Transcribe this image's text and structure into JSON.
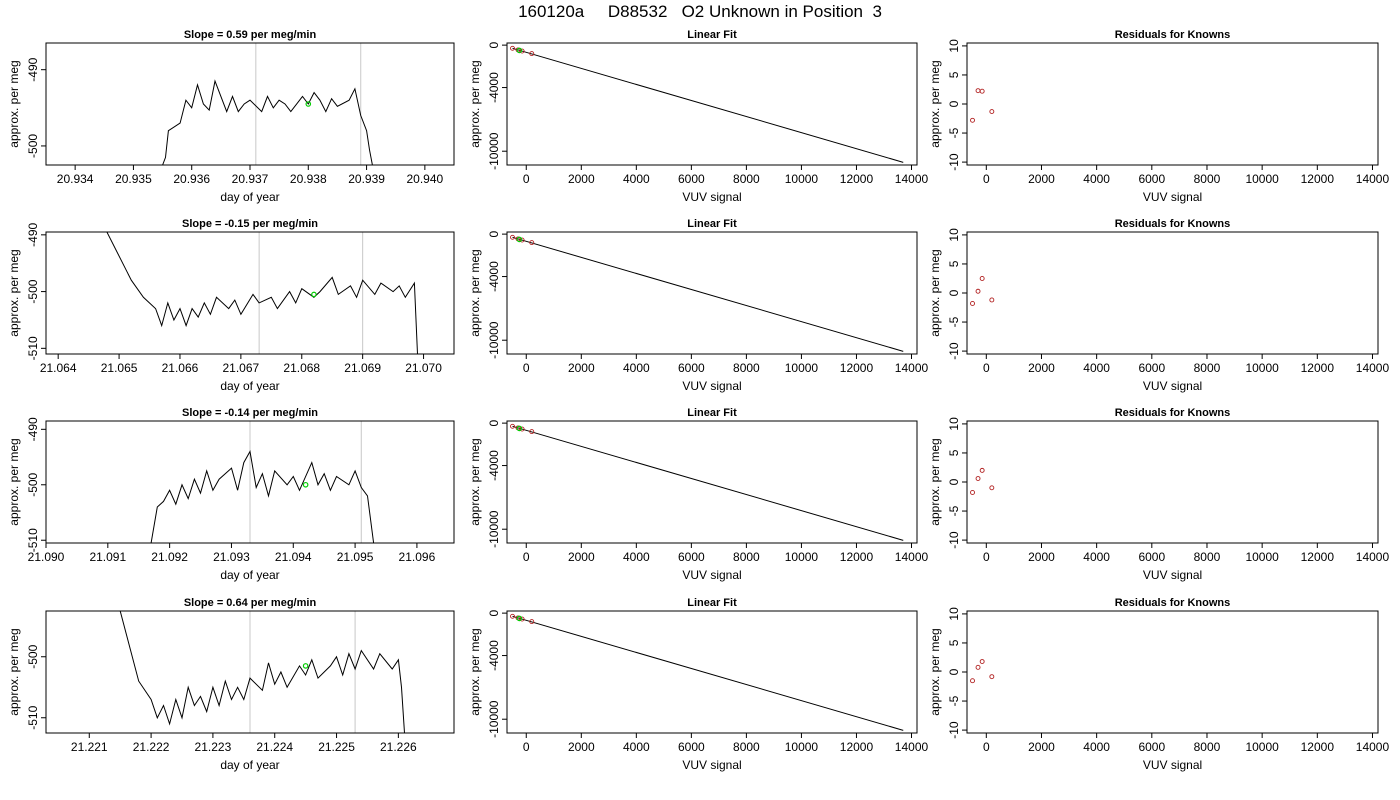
{
  "page": {
    "title": "160120a     D88532   O2 Unknown in Position  3"
  },
  "chart_data": [
    {
      "type": "line",
      "panel": "timeseries",
      "title": "Slope =  0.59  per meg/min",
      "xlabel": "day of year",
      "ylabel": "approx. per meg",
      "xlim": [
        20.9335,
        20.9405
      ],
      "ylim": [
        -502.5,
        -486.5
      ],
      "xticks": [
        "20.934",
        "20.935",
        "20.936",
        "20.937",
        "20.938",
        "20.939",
        "20.940"
      ],
      "yticks": [
        "-500",
        "-490"
      ],
      "vlines": [
        20.9371,
        20.9389
      ],
      "marker": {
        "x": 20.938,
        "y": -494.5,
        "color": "#00cc00"
      },
      "series_color": "#000000",
      "vline_color": "#c8c8c8",
      "series": [
        {
          "name": "",
          "x": [
            20.9355,
            20.93555,
            20.9356,
            20.9358,
            20.9359,
            20.936,
            20.9361,
            20.9362,
            20.9363,
            20.9364,
            20.9366,
            20.9367,
            20.9368,
            20.9369,
            20.937,
            20.9372,
            20.9373,
            20.9374,
            20.9375,
            20.9376,
            20.9377,
            20.9379,
            20.938,
            20.9381,
            20.9382,
            20.9383,
            20.9384,
            20.9385,
            20.9387,
            20.9388,
            20.9389,
            20.939,
            20.93905,
            20.9391
          ],
          "y": [
            -502.5,
            -501.5,
            -498,
            -497,
            -494,
            -495,
            -492,
            -494.5,
            -495.3,
            -491.5,
            -495.5,
            -493.5,
            -495.5,
            -494.5,
            -494,
            -495.5,
            -493.5,
            -495,
            -494,
            -494.5,
            -495.5,
            -493.5,
            -494.5,
            -493,
            -494,
            -495.5,
            -493.8,
            -494.8,
            -494,
            -492.5,
            -496,
            -498,
            -500.5,
            -502.5
          ]
        }
      ]
    },
    {
      "type": "line",
      "panel": "linear-fit",
      "title": "Linear Fit",
      "xlabel": "VUV signal",
      "ylabel": "approx. per meg",
      "xlim": [
        -700,
        14200
      ],
      "ylim": [
        -11300,
        200
      ],
      "xticks": [
        "0",
        "2000",
        "4000",
        "6000",
        "8000",
        "10000",
        "12000",
        "14000"
      ],
      "yticks": [
        "0",
        "-4000",
        "-10000"
      ],
      "fit_line": {
        "x": [
          -500,
          13700
        ],
        "y": [
          -300,
          -11050
        ]
      },
      "knowns": {
        "x": [
          -500,
          -300,
          -150,
          200
        ],
        "y": [
          -300,
          -450,
          -560,
          -800
        ]
      },
      "unknown": {
        "x": [
          -250
        ],
        "y": [
          -500
        ]
      }
    },
    {
      "type": "scatter",
      "panel": "residuals",
      "title": "Residuals for Knowns",
      "xlabel": "VUV signal",
      "ylabel": "approx. per meg",
      "xlim": [
        -700,
        14200
      ],
      "ylim": [
        -10.5,
        10.5
      ],
      "xticks": [
        "0",
        "2000",
        "4000",
        "6000",
        "8000",
        "10000",
        "12000",
        "14000"
      ],
      "yticks": [
        "-10",
        "-5",
        "0",
        "5",
        "10"
      ],
      "series": [
        {
          "name": "",
          "x": [
            -500,
            -300,
            -150,
            200
          ],
          "y": [
            -2.8,
            2.3,
            2.2,
            -1.3
          ]
        }
      ]
    },
    {
      "type": "line",
      "panel": "timeseries",
      "title": "Slope =  -0.15  per meg/min",
      "xlabel": "day of year",
      "ylabel": "approx. per meg",
      "xlim": [
        21.0638,
        21.0705
      ],
      "ylim": [
        -511,
        -489.5
      ],
      "xticks": [
        "21.064",
        "21.065",
        "21.066",
        "21.067",
        "21.068",
        "21.069",
        "21.070"
      ],
      "yticks": [
        "-510",
        "-500",
        "-490"
      ],
      "vlines": [
        21.0673,
        21.069
      ],
      "marker": {
        "x": 21.0682,
        "y": -500.5,
        "color": "#00cc00"
      },
      "series_color": "#000000",
      "vline_color": "#c8c8c8",
      "series": [
        {
          "name": "",
          "x": [
            21.0648,
            21.0652,
            21.0654,
            21.0656,
            21.0657,
            21.0658,
            21.0659,
            21.066,
            21.0661,
            21.0662,
            21.0663,
            21.0664,
            21.0665,
            21.0666,
            21.0668,
            21.0669,
            21.067,
            21.0672,
            21.0673,
            21.0675,
            21.0676,
            21.0678,
            21.0679,
            21.068,
            21.0682,
            21.0683,
            21.0685,
            21.0686,
            21.0688,
            21.0689,
            21.069,
            21.0692,
            21.0693,
            21.0695,
            21.0696,
            21.0697,
            21.06985,
            21.0699
          ],
          "y": [
            -489.5,
            -498,
            -501,
            -503,
            -506,
            -502,
            -505,
            -503,
            -506,
            -503,
            -504.5,
            -502,
            -504,
            -501,
            -503,
            -501.5,
            -504,
            -500.5,
            -502,
            -501,
            -503,
            -500,
            -502,
            -499.5,
            -501,
            -500,
            -497.5,
            -500.5,
            -499,
            -501,
            -498,
            -500.5,
            -498.5,
            -500,
            -499,
            -501,
            -498.5,
            -511
          ]
        }
      ]
    },
    {
      "type": "line",
      "panel": "linear-fit",
      "title": "Linear Fit",
      "xlabel": "VUV signal",
      "ylabel": "approx. per meg",
      "xlim": [
        -700,
        14200
      ],
      "ylim": [
        -11300,
        200
      ],
      "xticks": [
        "0",
        "2000",
        "4000",
        "6000",
        "8000",
        "10000",
        "12000",
        "14000"
      ],
      "yticks": [
        "0",
        "-4000",
        "-10000"
      ],
      "fit_line": {
        "x": [
          -500,
          13700
        ],
        "y": [
          -300,
          -11050
        ]
      },
      "knowns": {
        "x": [
          -500,
          -300,
          -150,
          200
        ],
        "y": [
          -300,
          -450,
          -560,
          -800
        ]
      },
      "unknown": {
        "x": [
          -250
        ],
        "y": [
          -500
        ]
      }
    },
    {
      "type": "scatter",
      "panel": "residuals",
      "title": "Residuals for Knowns",
      "xlabel": "VUV signal",
      "ylabel": "approx. per meg",
      "xlim": [
        -700,
        14200
      ],
      "ylim": [
        -10.5,
        10.5
      ],
      "xticks": [
        "0",
        "2000",
        "4000",
        "6000",
        "8000",
        "10000",
        "12000",
        "14000"
      ],
      "yticks": [
        "-10",
        "-5",
        "0",
        "5",
        "10"
      ],
      "series": [
        {
          "name": "",
          "x": [
            -500,
            -300,
            -150,
            200
          ],
          "y": [
            -1.8,
            0.3,
            2.5,
            -1.2
          ]
        }
      ]
    },
    {
      "type": "line",
      "panel": "timeseries",
      "title": "Slope =  -0.14  per meg/min",
      "xlabel": "day of year",
      "ylabel": "approx. per meg",
      "xlim": [
        21.09,
        21.0966
      ],
      "ylim": [
        -510.5,
        -488.5
      ],
      "xticks": [
        "21.090",
        "21.091",
        "21.092",
        "21.093",
        "21.094",
        "21.095",
        "21.096"
      ],
      "yticks": [
        "-510",
        "-500",
        "-490"
      ],
      "vlines": [
        21.0933,
        21.0951
      ],
      "marker": {
        "x": 21.0942,
        "y": -500,
        "color": "#00cc00"
      },
      "series_color": "#000000",
      "vline_color": "#c8c8c8",
      "series": [
        {
          "name": "",
          "x": [
            21.0917,
            21.0918,
            21.0919,
            21.092,
            21.0921,
            21.0922,
            21.0923,
            21.0924,
            21.0925,
            21.0926,
            21.0927,
            21.0928,
            21.093,
            21.0931,
            21.0932,
            21.0933,
            21.0934,
            21.0935,
            21.0936,
            21.0937,
            21.0939,
            21.094,
            21.0941,
            21.0943,
            21.0944,
            21.0945,
            21.0946,
            21.0947,
            21.0949,
            21.095,
            21.0951,
            21.0952,
            21.0953
          ],
          "y": [
            -510.5,
            -504,
            -503,
            -501,
            -503.5,
            -500,
            -502.5,
            -499,
            -501.5,
            -497.5,
            -501,
            -499,
            -497,
            -501,
            -496,
            -494,
            -500.5,
            -498,
            -502,
            -497.5,
            -500,
            -498.5,
            -501,
            -496,
            -500,
            -498,
            -501,
            -498.5,
            -500,
            -497.5,
            -500.5,
            -502,
            -510.5
          ]
        }
      ]
    },
    {
      "type": "line",
      "panel": "linear-fit",
      "title": "Linear Fit",
      "xlabel": "VUV signal",
      "ylabel": "approx. per meg",
      "xlim": [
        -700,
        14200
      ],
      "ylim": [
        -11300,
        200
      ],
      "xticks": [
        "0",
        "2000",
        "4000",
        "6000",
        "8000",
        "10000",
        "12000",
        "14000"
      ],
      "yticks": [
        "0",
        "-4000",
        "-10000"
      ],
      "fit_line": {
        "x": [
          -500,
          13700
        ],
        "y": [
          -300,
          -11050
        ]
      },
      "knowns": {
        "x": [
          -500,
          -300,
          -150,
          200
        ],
        "y": [
          -300,
          -450,
          -560,
          -800
        ]
      },
      "unknown": {
        "x": [
          -250
        ],
        "y": [
          -500
        ]
      }
    },
    {
      "type": "scatter",
      "panel": "residuals",
      "title": "Residuals for Knowns",
      "xlabel": "VUV signal",
      "ylabel": "approx. per meg",
      "xlim": [
        -700,
        14200
      ],
      "ylim": [
        -10.5,
        10.5
      ],
      "xticks": [
        "0",
        "2000",
        "4000",
        "6000",
        "8000",
        "10000",
        "12000",
        "14000"
      ],
      "yticks": [
        "-10",
        "-5",
        "0",
        "5",
        "10"
      ],
      "series": [
        {
          "name": "",
          "x": [
            -500,
            -300,
            -150,
            200
          ],
          "y": [
            -1.8,
            0.6,
            2.0,
            -1.0
          ]
        }
      ]
    },
    {
      "type": "line",
      "panel": "timeseries",
      "title": "Slope =  0.64  per meg/min",
      "xlabel": "day of year",
      "ylabel": "approx. per meg",
      "xlim": [
        21.2203,
        21.2269
      ],
      "ylim": [
        -512.5,
        -492.5
      ],
      "xticks": [
        "21.221",
        "21.222",
        "21.223",
        "21.224",
        "21.225",
        "21.226"
      ],
      "yticks": [
        "-510",
        "-500"
      ],
      "vlines": [
        21.2236,
        21.2253
      ],
      "marker": {
        "x": 21.2245,
        "y": -501.5,
        "color": "#00cc00"
      },
      "series_color": "#000000",
      "vline_color": "#c8c8c8",
      "series": [
        {
          "name": "",
          "x": [
            21.2215,
            21.2218,
            21.222,
            21.2221,
            21.2222,
            21.2223,
            21.2224,
            21.2225,
            21.2226,
            21.2227,
            21.2228,
            21.2229,
            21.223,
            21.2231,
            21.2232,
            21.2233,
            21.2234,
            21.2235,
            21.2236,
            21.2238,
            21.2239,
            21.224,
            21.2241,
            21.2242,
            21.2244,
            21.2245,
            21.2246,
            21.2247,
            21.2249,
            21.225,
            21.2251,
            21.2252,
            21.2253,
            21.2254,
            21.2256,
            21.2257,
            21.2259,
            21.226,
            21.22605,
            21.2261
          ],
          "y": [
            -492.5,
            -504,
            -507,
            -510,
            -508,
            -511,
            -507,
            -510,
            -505,
            -508,
            -506.5,
            -509,
            -505,
            -508,
            -504,
            -507,
            -505,
            -507,
            -503.5,
            -505.5,
            -501,
            -504.5,
            -502.5,
            -505,
            -501.5,
            -503,
            -500.5,
            -503.5,
            -501.5,
            -500,
            -503,
            -499.5,
            -502,
            -499,
            -502,
            -499.5,
            -502,
            -500.5,
            -505,
            -512.5
          ]
        }
      ]
    },
    {
      "type": "line",
      "panel": "linear-fit",
      "title": "Linear Fit",
      "xlabel": "VUV signal",
      "ylabel": "approx. per meg",
      "xlim": [
        -700,
        14200
      ],
      "ylim": [
        -11300,
        200
      ],
      "xticks": [
        "0",
        "2000",
        "4000",
        "6000",
        "8000",
        "10000",
        "12000",
        "14000"
      ],
      "yticks": [
        "0",
        "-4000",
        "-10000"
      ],
      "fit_line": {
        "x": [
          -500,
          13700
        ],
        "y": [
          -300,
          -11050
        ]
      },
      "knowns": {
        "x": [
          -500,
          -300,
          -150,
          200
        ],
        "y": [
          -300,
          -450,
          -560,
          -800
        ]
      },
      "unknown": {
        "x": [
          -250
        ],
        "y": [
          -500
        ]
      }
    },
    {
      "type": "scatter",
      "panel": "residuals",
      "title": "Residuals for Knowns",
      "xlabel": "VUV signal",
      "ylabel": "approx. per meg",
      "xlim": [
        -700,
        14200
      ],
      "ylim": [
        -10.5,
        10.5
      ],
      "xticks": [
        "0",
        "2000",
        "4000",
        "6000",
        "8000",
        "10000",
        "12000",
        "14000"
      ],
      "yticks": [
        "-10",
        "-5",
        "0",
        "5",
        "10"
      ],
      "series": [
        {
          "name": "",
          "x": [
            -500,
            -300,
            -150,
            200
          ],
          "y": [
            -1.5,
            0.8,
            1.8,
            -0.8
          ]
        }
      ]
    }
  ]
}
